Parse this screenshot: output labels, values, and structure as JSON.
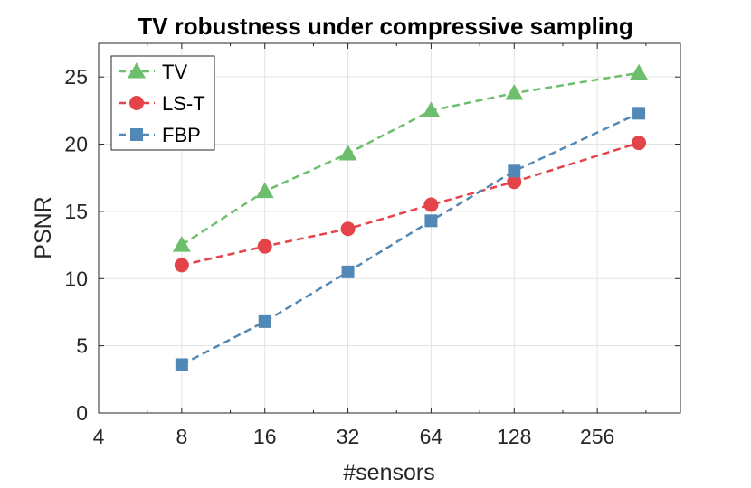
{
  "chart_data": {
    "type": "line",
    "title": "TV robustness under compressive sampling",
    "xlabel": "#sensors",
    "ylabel": "PSNR",
    "xscale": "log2",
    "xlim": [
      4,
      512
    ],
    "ylim": [
      0,
      27.5
    ],
    "xticks": [
      4,
      8,
      16,
      32,
      64,
      128,
      256
    ],
    "xtick_labels": [
      "4",
      "8",
      "16",
      "32",
      "64",
      "128",
      "256"
    ],
    "yticks": [
      0,
      5,
      10,
      15,
      20,
      25
    ],
    "ytick_labels": [
      "0",
      "5",
      "10",
      "15",
      "20",
      "25"
    ],
    "grid": true,
    "legend_position": "top-left",
    "x": [
      8,
      16,
      32,
      64,
      128,
      362
    ],
    "series": [
      {
        "name": "TV",
        "values": [
          12.5,
          16.5,
          19.3,
          22.5,
          23.8,
          25.3
        ],
        "color": "#6dbf6d",
        "marker": "triangle",
        "linestyle": "dashed"
      },
      {
        "name": "LS-T",
        "values": [
          11.0,
          12.4,
          13.7,
          15.5,
          17.2,
          20.1
        ],
        "color": "#e5434a",
        "marker": "circle",
        "linestyle": "dashed"
      },
      {
        "name": "FBP",
        "values": [
          3.6,
          6.8,
          10.5,
          14.3,
          18.0,
          22.3
        ],
        "color": "#5288b5",
        "marker": "square",
        "linestyle": "dashed"
      }
    ]
  }
}
